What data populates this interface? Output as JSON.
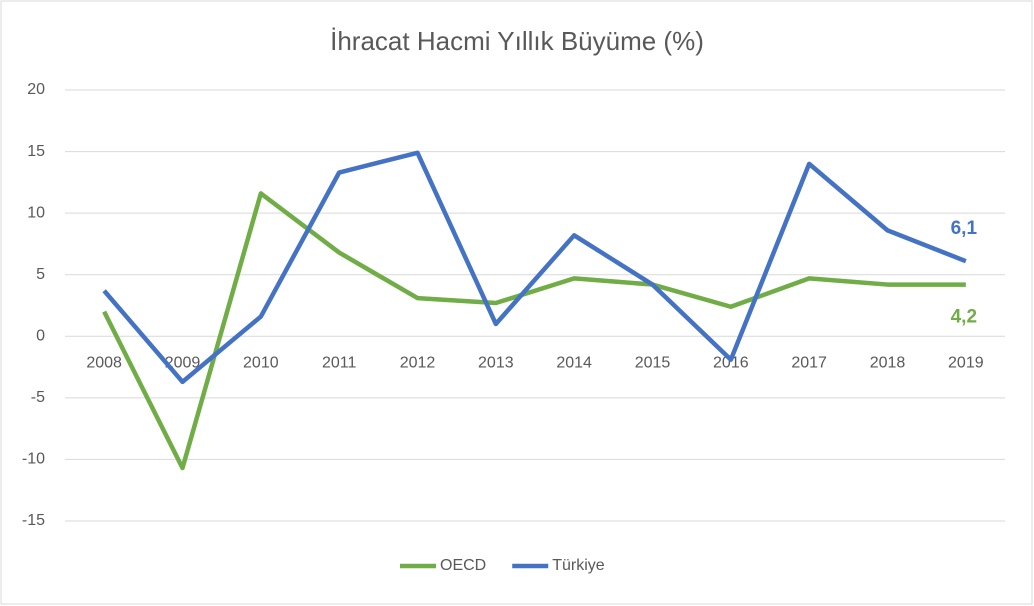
{
  "chart_data": {
    "type": "line",
    "title": "İhracat Hacmi Yıllık Büyüme (%)",
    "categories": [
      "2008",
      "2009",
      "2010",
      "2011",
      "2012",
      "2013",
      "2014",
      "2015",
      "2016",
      "2017",
      "2018",
      "2019"
    ],
    "series": [
      {
        "name": "OECD",
        "color": "#70ad47",
        "values": [
          2.0,
          -10.7,
          11.6,
          6.8,
          3.1,
          2.7,
          4.7,
          4.2,
          2.4,
          4.7,
          4.2,
          4.2
        ],
        "value_labels": [
          null,
          null,
          null,
          null,
          null,
          null,
          null,
          null,
          null,
          null,
          null,
          "4,2"
        ]
      },
      {
        "name": "Türkiye",
        "color": "#4472c4",
        "values": [
          3.7,
          -3.7,
          1.6,
          13.3,
          14.9,
          1.0,
          8.2,
          4.2,
          -1.9,
          14.0,
          8.6,
          6.1
        ],
        "value_labels": [
          null,
          null,
          null,
          null,
          null,
          null,
          null,
          null,
          null,
          null,
          null,
          "6,1"
        ]
      }
    ],
    "ylim": [
      -15,
      20
    ],
    "yticks": [
      -15,
      -10,
      -5,
      0,
      5,
      10,
      15,
      20
    ],
    "grid": true,
    "legend": "bottom"
  }
}
